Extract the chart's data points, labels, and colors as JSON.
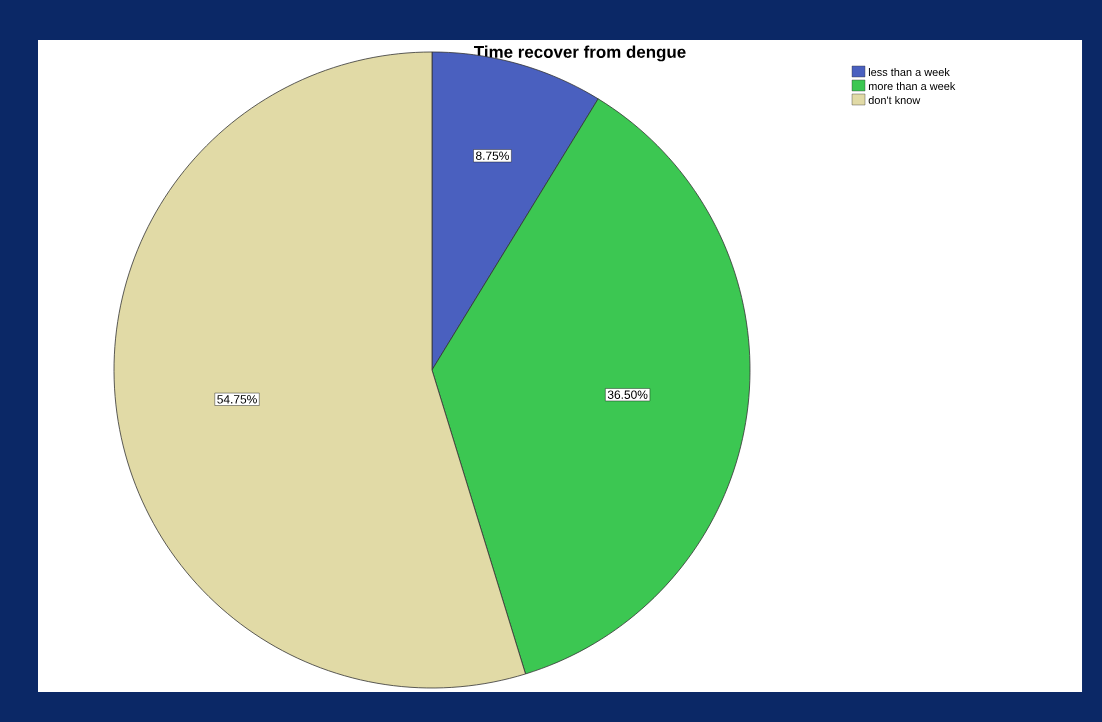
{
  "chart_data": {
    "type": "pie",
    "title": "Time recover from dengue",
    "categories": [
      "less than a week",
      "more than a week",
      "don't know"
    ],
    "values": [
      8.75,
      36.5,
      54.75
    ],
    "colors": [
      "#4a60bf",
      "#3cc752",
      "#e1daa6"
    ],
    "value_labels": [
      "8.75%",
      "36.50%",
      "54.75%"
    ],
    "legend": "top right"
  }
}
